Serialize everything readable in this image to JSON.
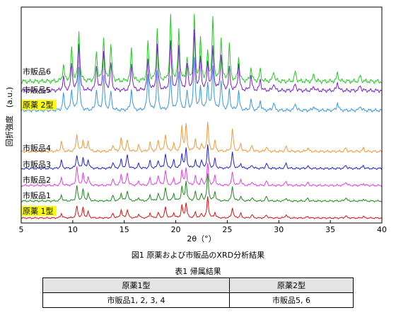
{
  "chart_data": {
    "type": "line",
    "xlabel": "2θ（°）",
    "ylabel": "回折強度　(a.u.)",
    "xlim": [
      5,
      40
    ],
    "xticks": [
      5,
      10,
      15,
      20,
      25,
      30,
      35,
      40
    ],
    "grid": false,
    "series_labels": [
      {
        "name": "市販品6",
        "color": "#22cc22",
        "highlight": false
      },
      {
        "name": "市販品5",
        "color": "#7a22cc",
        "highlight": false
      },
      {
        "name": "原薬 2型",
        "color": "#3a98e0",
        "highlight": true
      },
      {
        "name": "市販品4",
        "color": "#f09a3c",
        "highlight": false
      },
      {
        "name": "市販品3",
        "color": "#2222dd",
        "highlight": false
      },
      {
        "name": "市販品2",
        "color": "#e040e0",
        "highlight": false
      },
      {
        "name": "市販品1",
        "color": "#1e8a1e",
        "highlight": false
      },
      {
        "name": "原薬 1型",
        "color": "#dd1111",
        "highlight": true
      }
    ],
    "form2_peaks": [
      [
        9.1,
        0.3
      ],
      [
        9.9,
        0.45
      ],
      [
        10.6,
        0.85
      ],
      [
        12.3,
        0.45
      ],
      [
        13.0,
        0.8
      ],
      [
        13.7,
        0.5
      ],
      [
        15.7,
        0.55
      ],
      [
        17.3,
        0.65
      ],
      [
        18.2,
        0.85
      ],
      [
        19.5,
        0.9
      ],
      [
        20.3,
        0.75
      ],
      [
        21.1,
        0.4
      ],
      [
        21.8,
        1.0
      ],
      [
        22.4,
        0.6
      ],
      [
        23.1,
        0.55
      ],
      [
        23.6,
        0.85
      ],
      [
        24.4,
        0.65
      ],
      [
        25.2,
        0.5
      ],
      [
        26.1,
        0.45
      ],
      [
        27.3,
        0.25
      ],
      [
        28.2,
        0.2
      ],
      [
        29.5,
        0.15
      ],
      [
        31.6,
        0.15
      ],
      [
        33.4,
        0.1
      ],
      [
        35.7,
        0.15
      ],
      [
        37.9,
        0.1
      ]
    ],
    "form1_peaks": [
      [
        8.9,
        0.25
      ],
      [
        10.4,
        0.55
      ],
      [
        11.0,
        0.4
      ],
      [
        11.5,
        0.3
      ],
      [
        13.9,
        0.2
      ],
      [
        14.7,
        0.35
      ],
      [
        15.3,
        0.4
      ],
      [
        16.4,
        0.15
      ],
      [
        17.5,
        0.25
      ],
      [
        18.3,
        0.3
      ],
      [
        19.0,
        0.45
      ],
      [
        19.8,
        0.25
      ],
      [
        20.6,
        0.6
      ],
      [
        21.0,
        0.65
      ],
      [
        21.9,
        0.3
      ],
      [
        22.5,
        0.25
      ],
      [
        23.1,
        0.9
      ],
      [
        23.8,
        0.3
      ],
      [
        25.5,
        0.55
      ],
      [
        26.3,
        0.2
      ],
      [
        27.4,
        0.15
      ],
      [
        28.8,
        0.15
      ],
      [
        30.7,
        0.15
      ],
      [
        32.8,
        0.1
      ],
      [
        36.5,
        0.12
      ],
      [
        38.2,
        0.08
      ]
    ]
  },
  "caption": "図1 原薬および市販品のXRD分析結果",
  "table": {
    "title": "表1 帰属結果",
    "headers": [
      "原薬1型",
      "原薬2型"
    ],
    "rows": [
      [
        "市販品1, 2, 3, 4",
        "市販品5, 6"
      ]
    ]
  }
}
